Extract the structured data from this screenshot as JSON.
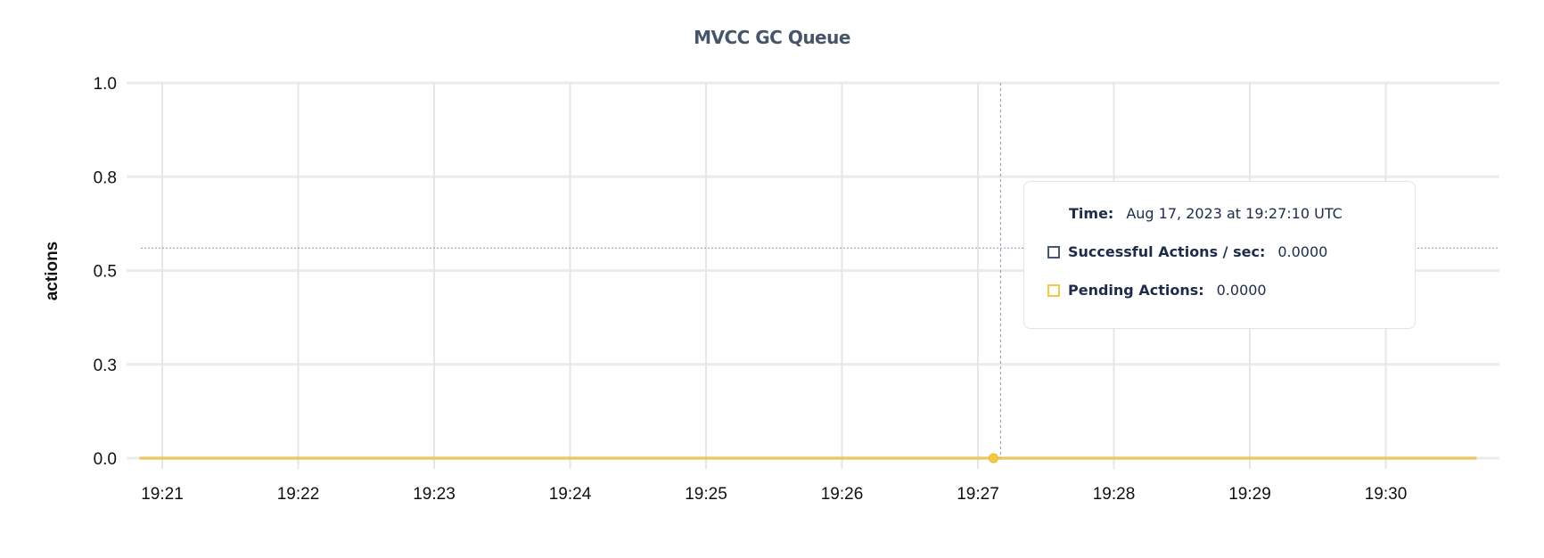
{
  "chart_data": {
    "type": "line",
    "title": "MVCC GC Queue",
    "xlabel": "",
    "ylabel": "actions",
    "x_ticks": [
      "19:21",
      "19:22",
      "19:23",
      "19:24",
      "19:25",
      "19:26",
      "19:27",
      "19:28",
      "19:29",
      "19:30"
    ],
    "y_ticks": [
      {
        "value": 0,
        "label": "0.0"
      },
      {
        "value": 0.25,
        "label": "0.3"
      },
      {
        "value": 0.5,
        "label": "0.5"
      },
      {
        "value": 0.75,
        "label": "0.8"
      },
      {
        "value": 1,
        "label": "1.0"
      }
    ],
    "ylim": [
      0,
      1
    ],
    "xlim_minutes": [
      "19:20:44",
      "19:30:52"
    ],
    "grid": true,
    "series": [
      {
        "name": "Successful Actions / sec",
        "color": "#475872",
        "x": [
          "19:20:50",
          "19:30:40"
        ],
        "values": [
          0,
          0
        ]
      },
      {
        "name": "Pending Actions",
        "color": "#f5c945",
        "x": [
          "19:20:50",
          "19:30:40"
        ],
        "values": [
          0,
          0
        ]
      }
    ],
    "hover": {
      "time": "19:27:10",
      "y": 0.56
    }
  },
  "tooltip": {
    "time_label": "Time:",
    "time_value": "Aug 17, 2023 at 19:27:10 UTC",
    "rows": [
      {
        "label": "Successful Actions / sec:",
        "value": "0.0000",
        "color": "#475872"
      },
      {
        "label": "Pending Actions:",
        "value": "0.0000",
        "color": "#f5c945"
      }
    ]
  }
}
